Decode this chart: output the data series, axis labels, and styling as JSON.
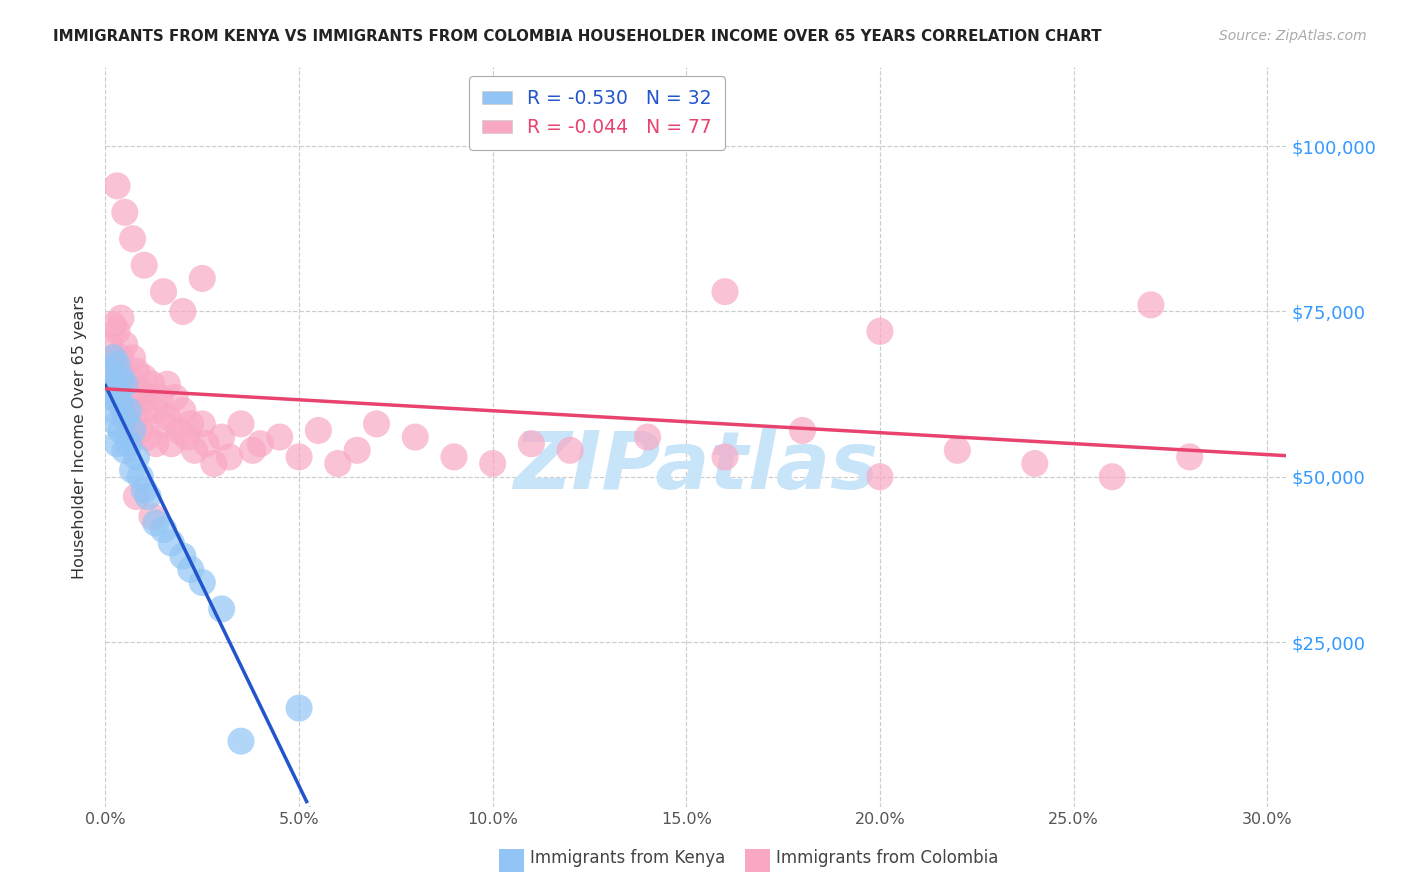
{
  "title": "IMMIGRANTS FROM KENYA VS IMMIGRANTS FROM COLOMBIA HOUSEHOLDER INCOME OVER 65 YEARS CORRELATION CHART",
  "source": "Source: ZipAtlas.com",
  "ylabel": "Householder Income Over 65 years",
  "xlim": [
    0.0,
    0.305
  ],
  "ylim": [
    0,
    112000
  ],
  "xtick_vals": [
    0.0,
    0.05,
    0.1,
    0.15,
    0.2,
    0.25,
    0.3
  ],
  "xtick_labels": [
    "0.0%",
    "5.0%",
    "10.0%",
    "15.0%",
    "20.0%",
    "25.0%",
    "30.0%"
  ],
  "ytick_vals": [
    25000,
    50000,
    75000,
    100000
  ],
  "ytick_right_labels": [
    "$25,000",
    "$50,000",
    "$75,000",
    "$100,000"
  ],
  "kenya_R": -0.53,
  "kenya_N": 32,
  "colombia_R": -0.044,
  "colombia_N": 77,
  "kenya_dot_color": "#92C5F5",
  "colombia_dot_color": "#F9A8C4",
  "kenya_line_color": "#2255CC",
  "colombia_line_color": "#E8436E",
  "bg_color": "#ffffff",
  "grid_color": "#CCCCCC",
  "watermark_text": "ZIPatlas",
  "watermark_color": "#C8E4F8",
  "kenya_x": [
    0.001,
    0.001,
    0.002,
    0.002,
    0.002,
    0.003,
    0.003,
    0.003,
    0.003,
    0.004,
    0.004,
    0.004,
    0.005,
    0.005,
    0.005,
    0.006,
    0.006,
    0.007,
    0.007,
    0.008,
    0.009,
    0.01,
    0.011,
    0.013,
    0.015,
    0.017,
    0.02,
    0.022,
    0.025,
    0.03,
    0.035,
    0.05
  ],
  "kenya_y": [
    66000,
    62000,
    68000,
    64000,
    60000,
    67000,
    63000,
    58000,
    55000,
    65000,
    61000,
    57000,
    64000,
    59000,
    54000,
    60000,
    55000,
    57000,
    51000,
    53000,
    50000,
    48000,
    47000,
    43000,
    42000,
    40000,
    38000,
    36000,
    34000,
    30000,
    10000,
    15000
  ],
  "colombia_x": [
    0.001,
    0.001,
    0.002,
    0.002,
    0.002,
    0.003,
    0.003,
    0.004,
    0.004,
    0.005,
    0.005,
    0.005,
    0.006,
    0.006,
    0.007,
    0.007,
    0.008,
    0.008,
    0.009,
    0.009,
    0.01,
    0.01,
    0.011,
    0.011,
    0.012,
    0.013,
    0.013,
    0.014,
    0.015,
    0.016,
    0.016,
    0.017,
    0.018,
    0.019,
    0.02,
    0.021,
    0.022,
    0.023,
    0.025,
    0.026,
    0.028,
    0.03,
    0.032,
    0.035,
    0.038,
    0.04,
    0.045,
    0.05,
    0.055,
    0.06,
    0.065,
    0.07,
    0.08,
    0.09,
    0.1,
    0.11,
    0.12,
    0.14,
    0.16,
    0.18,
    0.2,
    0.22,
    0.24,
    0.26,
    0.28,
    0.003,
    0.005,
    0.007,
    0.01,
    0.015,
    0.02,
    0.025,
    0.16,
    0.2,
    0.27,
    0.008,
    0.012
  ],
  "colombia_y": [
    70000,
    65000,
    73000,
    68000,
    62000,
    72000,
    66000,
    74000,
    68000,
    70000,
    64000,
    60000,
    65000,
    58000,
    68000,
    62000,
    66000,
    59000,
    63000,
    57000,
    65000,
    60000,
    62000,
    56000,
    64000,
    60000,
    55000,
    62000,
    58000,
    64000,
    59000,
    55000,
    62000,
    57000,
    60000,
    56000,
    58000,
    54000,
    58000,
    55000,
    52000,
    56000,
    53000,
    58000,
    54000,
    55000,
    56000,
    53000,
    57000,
    52000,
    54000,
    58000,
    56000,
    53000,
    52000,
    55000,
    54000,
    56000,
    53000,
    57000,
    50000,
    54000,
    52000,
    50000,
    53000,
    94000,
    90000,
    86000,
    82000,
    78000,
    75000,
    80000,
    78000,
    72000,
    76000,
    47000,
    44000
  ]
}
